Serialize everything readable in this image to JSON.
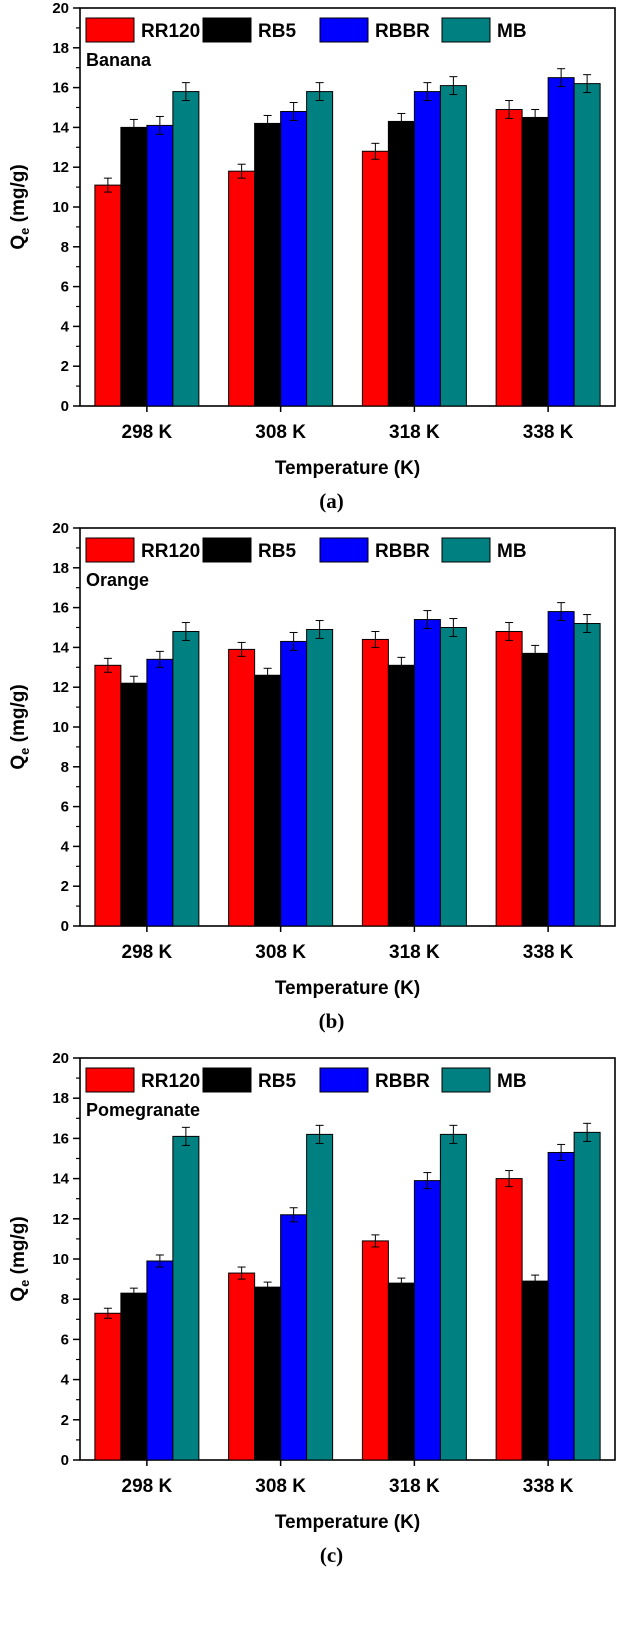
{
  "figure": {
    "xlabel": "Temperature (K)",
    "ylabel": "Q",
    "ylabel_sub": "e",
    "ylabel_unit": " (mg/g)"
  },
  "chart_data": [
    {
      "type": "bar",
      "panel_label": "(a)",
      "annotation": "Banana",
      "categories": [
        "298 K",
        "308 K",
        "318 K",
        "338 K"
      ],
      "ylim": [
        0,
        20
      ],
      "yticks": [
        "0",
        "2",
        "4",
        "6",
        "8",
        "10",
        "12",
        "14",
        "16",
        "18",
        "20"
      ],
      "legend_position": "top",
      "series": [
        {
          "name": "RR120",
          "color": "#ff0000",
          "values": [
            11.1,
            11.8,
            12.8,
            14.9
          ],
          "errors": [
            0.35,
            0.35,
            0.4,
            0.45
          ]
        },
        {
          "name": "RB5",
          "color": "#000000",
          "values": [
            14.0,
            14.2,
            14.3,
            14.5
          ],
          "errors": [
            0.4,
            0.4,
            0.4,
            0.4
          ]
        },
        {
          "name": "RBBR",
          "color": "#0000ff",
          "values": [
            14.1,
            14.8,
            15.8,
            16.5
          ],
          "errors": [
            0.45,
            0.45,
            0.45,
            0.45
          ]
        },
        {
          "name": "MB",
          "color": "#008080",
          "values": [
            15.8,
            15.8,
            16.1,
            16.2
          ],
          "errors": [
            0.45,
            0.45,
            0.45,
            0.45
          ]
        }
      ]
    },
    {
      "type": "bar",
      "panel_label": "(b)",
      "annotation": "Orange",
      "categories": [
        "298 K",
        "308 K",
        "318 K",
        "338 K"
      ],
      "ylim": [
        0,
        20
      ],
      "yticks": [
        "0",
        "2",
        "4",
        "6",
        "8",
        "10",
        "12",
        "14",
        "16",
        "18",
        "20"
      ],
      "legend_position": "top",
      "series": [
        {
          "name": "RR120",
          "color": "#ff0000",
          "values": [
            13.1,
            13.9,
            14.4,
            14.8
          ],
          "errors": [
            0.35,
            0.35,
            0.4,
            0.45
          ]
        },
        {
          "name": "RB5",
          "color": "#000000",
          "values": [
            12.2,
            12.6,
            13.1,
            13.7
          ],
          "errors": [
            0.35,
            0.35,
            0.4,
            0.4
          ]
        },
        {
          "name": "RBBR",
          "color": "#0000ff",
          "values": [
            13.4,
            14.3,
            15.4,
            15.8
          ],
          "errors": [
            0.4,
            0.45,
            0.45,
            0.45
          ]
        },
        {
          "name": "MB",
          "color": "#008080",
          "values": [
            14.8,
            14.9,
            15.0,
            15.2
          ],
          "errors": [
            0.45,
            0.45,
            0.45,
            0.45
          ]
        }
      ]
    },
    {
      "type": "bar",
      "panel_label": "(c)",
      "annotation": "Pomegranate",
      "categories": [
        "298 K",
        "308 K",
        "318 K",
        "338 K"
      ],
      "ylim": [
        0,
        20
      ],
      "yticks": [
        "0",
        "2",
        "4",
        "6",
        "8",
        "10",
        "12",
        "14",
        "16",
        "18",
        "20"
      ],
      "legend_position": "top",
      "series": [
        {
          "name": "RR120",
          "color": "#ff0000",
          "values": [
            7.3,
            9.3,
            10.9,
            14.0
          ],
          "errors": [
            0.25,
            0.3,
            0.3,
            0.4
          ]
        },
        {
          "name": "RB5",
          "color": "#000000",
          "values": [
            8.3,
            8.6,
            8.8,
            8.9
          ],
          "errors": [
            0.25,
            0.25,
            0.25,
            0.3
          ]
        },
        {
          "name": "RBBR",
          "color": "#0000ff",
          "values": [
            9.9,
            12.2,
            13.9,
            15.3
          ],
          "errors": [
            0.3,
            0.35,
            0.4,
            0.4
          ]
        },
        {
          "name": "MB",
          "color": "#008080",
          "values": [
            16.1,
            16.2,
            16.2,
            16.3
          ],
          "errors": [
            0.45,
            0.45,
            0.45,
            0.45
          ]
        }
      ]
    }
  ]
}
